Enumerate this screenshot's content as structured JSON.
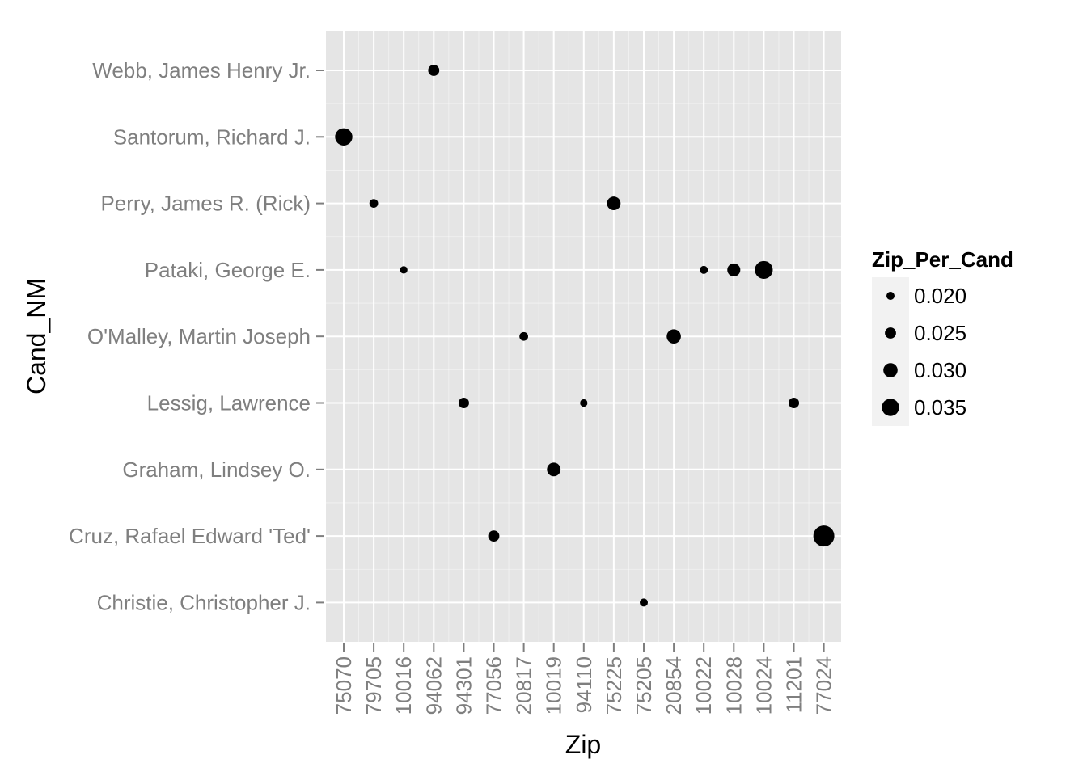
{
  "chart_data": {
    "type": "scatter",
    "xlabel": "Zip",
    "ylabel": "Cand_NM",
    "categories_x": [
      "75070",
      "79705",
      "10016",
      "94062",
      "94301",
      "77056",
      "20817",
      "10019",
      "94110",
      "75225",
      "75205",
      "20854",
      "10022",
      "10028",
      "10024",
      "11201",
      "77024"
    ],
    "categories_y": [
      "Webb, James Henry Jr.",
      "Santorum, Richard J.",
      "Perry, James R. (Rick)",
      "Pataki, George E.",
      "O'Malley, Martin Joseph",
      "Lessig, Lawrence",
      "Graham, Lindsey O.",
      "Cruz, Rafael Edward 'Ted'",
      "Christie, Christopher J."
    ],
    "points": [
      {
        "x": "94062",
        "y": "Webb, James Henry Jr.",
        "size": 0.025
      },
      {
        "x": "75070",
        "y": "Santorum, Richard J.",
        "size": 0.035
      },
      {
        "x": "79705",
        "y": "Perry, James R. (Rick)",
        "size": 0.021
      },
      {
        "x": "75225",
        "y": "Perry, James R. (Rick)",
        "size": 0.029
      },
      {
        "x": "10016",
        "y": "Pataki, George E.",
        "size": 0.019
      },
      {
        "x": "10022",
        "y": "Pataki, George E.",
        "size": 0.02
      },
      {
        "x": "10028",
        "y": "Pataki, George E.",
        "size": 0.028
      },
      {
        "x": "10024",
        "y": "Pataki, George E.",
        "size": 0.036
      },
      {
        "x": "20817",
        "y": "O'Malley, Martin Joseph",
        "size": 0.021
      },
      {
        "x": "20854",
        "y": "O'Malley, Martin Joseph",
        "size": 0.03
      },
      {
        "x": "94301",
        "y": "Lessig, Lawrence",
        "size": 0.024
      },
      {
        "x": "94110",
        "y": "Lessig, Lawrence",
        "size": 0.019
      },
      {
        "x": "11201",
        "y": "Lessig, Lawrence",
        "size": 0.024
      },
      {
        "x": "10019",
        "y": "Graham, Lindsey O.",
        "size": 0.029
      },
      {
        "x": "77056",
        "y": "Cruz, Rafael Edward 'Ted'",
        "size": 0.025
      },
      {
        "x": "77024",
        "y": "Cruz, Rafael Edward 'Ted'",
        "size": 0.041
      },
      {
        "x": "75205",
        "y": "Christie, Christopher J.",
        "size": 0.02
      }
    ],
    "legend": {
      "title": "Zip_Per_Cand",
      "placement": "right",
      "entries": [
        {
          "label": "0.020",
          "size": 0.02
        },
        {
          "label": "0.025",
          "size": 0.025
        },
        {
          "label": "0.030",
          "size": 0.03
        },
        {
          "label": "0.035",
          "size": 0.035
        }
      ]
    },
    "colors": {
      "panel": "#e5e5e5",
      "grid": "#ffffff",
      "point": "#000000",
      "tick_text": "#7f7f7f"
    },
    "grid": true
  }
}
